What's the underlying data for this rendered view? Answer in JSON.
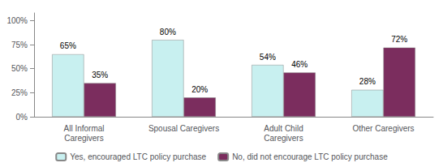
{
  "chart_data": {
    "type": "bar",
    "categories": [
      "All Informal\nCaregivers",
      "Spousal Caregivers",
      "Adult Child\nCaregivers",
      "Other Caregivers"
    ],
    "series": [
      {
        "name": "Yes, encouraged LTC policy purchase",
        "color": "#c8f0f0",
        "values": [
          65,
          80,
          54,
          28
        ],
        "value_labels": [
          "65%",
          "80%",
          "54%",
          "28%"
        ]
      },
      {
        "name": "No, did not encourage LTC policy purchase",
        "color": "#7b2d5e",
        "values": [
          35,
          20,
          46,
          72
        ],
        "value_labels": [
          "35%",
          "20%",
          "46%",
          "72%"
        ]
      }
    ],
    "ylim": [
      0,
      108
    ],
    "yticks": [
      {
        "value": 0,
        "label": "0%"
      },
      {
        "value": 25,
        "label": "25%"
      },
      {
        "value": 50,
        "label": "50%"
      },
      {
        "value": 75,
        "label": "75%"
      },
      {
        "value": 100,
        "label": "100%"
      }
    ],
    "grid": false,
    "legend": "bottom",
    "data_labels": true
  }
}
